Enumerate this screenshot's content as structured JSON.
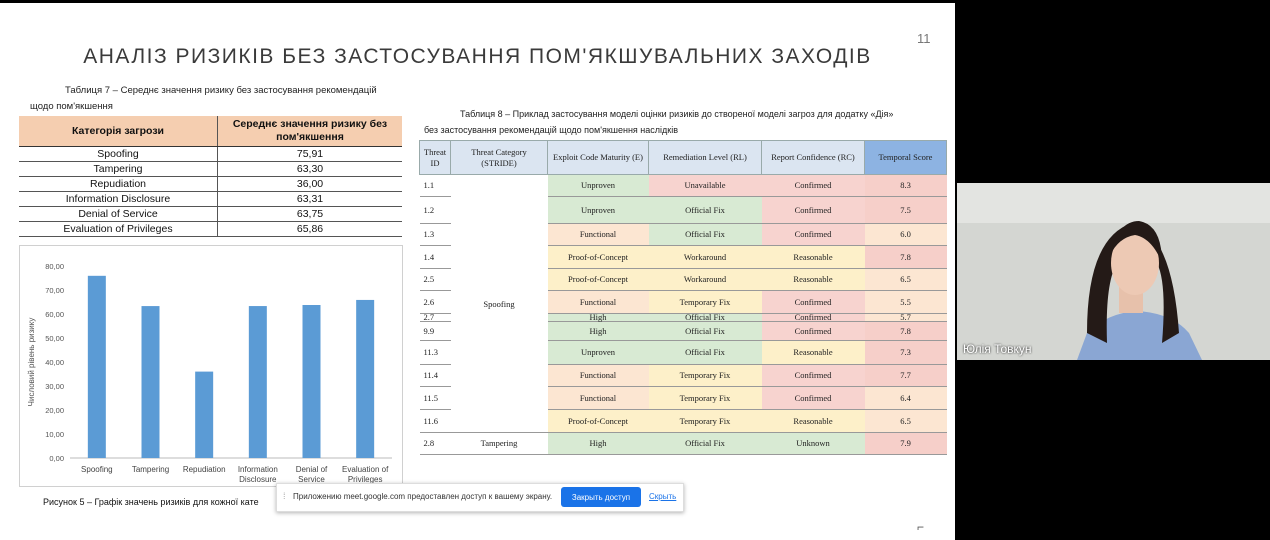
{
  "slide": {
    "page_number": "11",
    "title": "АНАЛІЗ РИЗИКІВ БЕЗ ЗАСТОСУВАННЯ ПОМ'ЯКШУВАЛЬНИХ ЗАХОДІВ"
  },
  "table7": {
    "caption_line1": "Таблиця 7 – Середнє значення ризику без застосування рекомендацій",
    "caption_line2": "щодо пом'якшення",
    "headers": [
      "Категорія загрози",
      "Середнє значення ризику без пом'якшення"
    ],
    "rows": [
      {
        "category": "Spoofing",
        "value": "75,91"
      },
      {
        "category": "Tampering",
        "value": "63,30"
      },
      {
        "category": "Repudiation",
        "value": "36,00"
      },
      {
        "category": "Information Disclosure",
        "value": "63,31"
      },
      {
        "category": "Denial of Service",
        "value": "63,75"
      },
      {
        "category": "Evaluation of Privileges",
        "value": "65,86"
      }
    ]
  },
  "chart_data": {
    "type": "bar",
    "categories": [
      "Spoofing",
      "Tampering",
      "Repudiation",
      "Information Disclosure",
      "Denial of Service",
      "Evaluation of Privileges"
    ],
    "category_lines": [
      [
        "Spoofing"
      ],
      [
        "Tampering"
      ],
      [
        "Repudiation"
      ],
      [
        "Information",
        "Disclosure"
      ],
      [
        "Denial of",
        "Service"
      ],
      [
        "Evaluation of",
        "Privileges"
      ]
    ],
    "values": [
      75.91,
      63.3,
      36.0,
      63.31,
      63.75,
      65.86
    ],
    "ylabel": "Числовий рівень ризику",
    "yticks": [
      "0,00",
      "10,00",
      "20,00",
      "30,00",
      "40,00",
      "50,00",
      "60,00",
      "70,00",
      "80,00"
    ],
    "ylim": [
      0,
      80
    ],
    "bar_color": "#5b9bd5",
    "grid": false
  },
  "figure5_caption": "Рисунок 5 – Графік значень ризиків для кожної кате",
  "table8": {
    "caption_line1": "Таблиця 8 – Приклад застосування моделі оцінки ризиків до створеної моделі загроз для додатку «Дія»",
    "caption_line2": "без застосування рекомендацій щодо пом'якшення наслідків",
    "headers": [
      "Threat ID",
      "Threat Category (STRIDE)",
      "Exploit Code Maturity (E)",
      "Remediation Level (RL)",
      "Report Confidence (RC)",
      "Temporal Score"
    ],
    "spoofing_label": "Spoofing",
    "rows": [
      {
        "id": "1.1",
        "category": "",
        "e": "Unproven",
        "rl": "Unavailable",
        "rc": "Confirmed",
        "score": "8.3"
      },
      {
        "id": "1.2",
        "category": "",
        "e": "Unproven",
        "rl": "Official Fix",
        "rc": "Confirmed",
        "score": "7.5"
      },
      {
        "id": "1.3",
        "category": "",
        "e": "Functional",
        "rl": "Official Fix",
        "rc": "Confirmed",
        "score": "6.0"
      },
      {
        "id": "1.4",
        "category": "",
        "e": "Proof-of-Concept",
        "rl": "Workaround",
        "rc": "Reasonable",
        "score": "7.8"
      },
      {
        "id": "2.5",
        "category": "",
        "e": "Proof-of-Concept",
        "rl": "Workaround",
        "rc": "Reasonable",
        "score": "6.5"
      },
      {
        "id": "2.6",
        "category": "",
        "e": "Functional",
        "rl": "Temporary Fix",
        "rc": "Confirmed",
        "score": "5.5"
      },
      {
        "id": "2.7",
        "category": "",
        "e": "High",
        "rl": "Official Fix",
        "rc": "Confirmed",
        "score": "5.7"
      },
      {
        "id": "9.9",
        "category": "",
        "e": "High",
        "rl": "Official Fix",
        "rc": "Confirmed",
        "score": "7.8"
      },
      {
        "id": "11.3",
        "category": "",
        "e": "Unproven",
        "rl": "Official Fix",
        "rc": "Reasonable",
        "score": "7.3"
      },
      {
        "id": "11.4",
        "category": "",
        "e": "Functional",
        "rl": "Temporary Fix",
        "rc": "Confirmed",
        "score": "7.7"
      },
      {
        "id": "11.5",
        "category": "",
        "e": "Functional",
        "rl": "Temporary Fix",
        "rc": "Confirmed",
        "score": "6.4"
      },
      {
        "id": "11.6",
        "category": "",
        "e": "Proof-of-Concept",
        "rl": "Temporary Fix",
        "rc": "Reasonable",
        "score": "6.5"
      },
      {
        "id": "2.8",
        "category": "Tampering",
        "e": "High",
        "rl": "Official Fix",
        "rc": "Unknown",
        "score": "7.9"
      }
    ]
  },
  "participant": {
    "name": "Юлія Товкун"
  },
  "share_bar": {
    "message": "Приложению meet.google.com предоставлен доступ к вашему экрану.",
    "stop_label": "Закрыть доступ",
    "hide_label": "Скрыть"
  }
}
